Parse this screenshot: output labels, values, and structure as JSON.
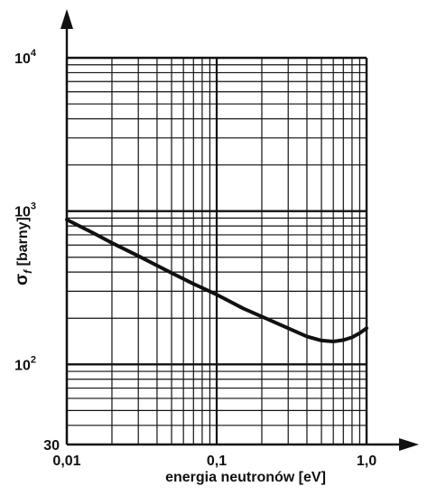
{
  "chart_data": {
    "type": "line",
    "title": "",
    "xlabel": "energia neutronów [eV]",
    "ylabel": {
      "symbol": "σ",
      "subscript": "f",
      "unit": " [barny]"
    },
    "x_scale": "log",
    "y_scale": "log",
    "xlim": [
      0.01,
      1.0
    ],
    "ylim": [
      30,
      10000
    ],
    "grid": true,
    "x_ticks": [
      {
        "value": 0.01,
        "label": "0,01"
      },
      {
        "value": 0.1,
        "label": "0,1"
      },
      {
        "value": 1.0,
        "label": "1,0"
      }
    ],
    "y_ticks": [
      {
        "value": 30,
        "label": "30",
        "exp": ""
      },
      {
        "value": 100,
        "label": "10",
        "exp": "2"
      },
      {
        "value": 1000,
        "label": "10",
        "exp": "3"
      },
      {
        "value": 10000,
        "label": "10",
        "exp": "4"
      }
    ],
    "series": [
      {
        "x": [
          0.01,
          0.015,
          0.02,
          0.03,
          0.05,
          0.07,
          0.1,
          0.15,
          0.2,
          0.3,
          0.4,
          0.5,
          0.6,
          0.7,
          0.8,
          0.9,
          1.0
        ],
        "y": [
          880,
          720,
          620,
          510,
          395,
          335,
          285,
          232,
          205,
          172,
          152,
          143,
          141,
          144,
          150,
          160,
          172
        ]
      }
    ]
  }
}
